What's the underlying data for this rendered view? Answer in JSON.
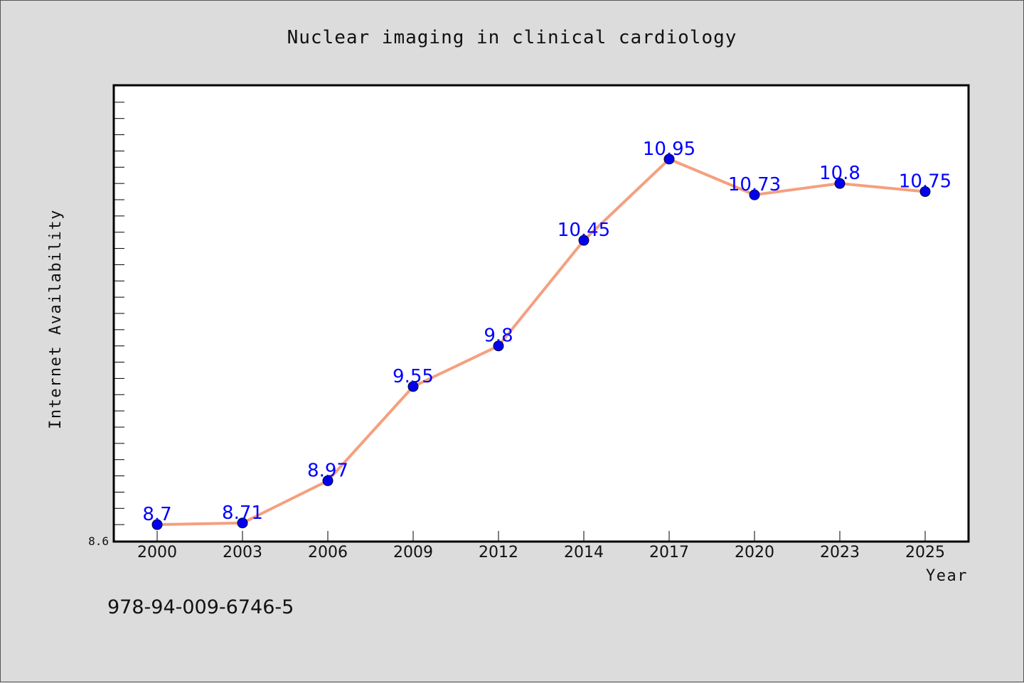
{
  "chart_data": {
    "type": "line",
    "title": "Nuclear imaging in clinical cardiology",
    "xlabel": "Year",
    "ylabel": "Internet Availability",
    "categories": [
      "2000",
      "2003",
      "2006",
      "2009",
      "2012",
      "2014",
      "2017",
      "2020",
      "2023",
      "2025"
    ],
    "series": [
      {
        "values": [
          8.7,
          8.71,
          8.97,
          9.55,
          9.8,
          10.45,
          10.95,
          10.73,
          10.8,
          10.75
        ],
        "labels": [
          "8.7",
          "8.71",
          "8.97",
          "9.55",
          "9.8",
          "10.45",
          "10.95",
          "10.73",
          "10.8",
          "10.75"
        ]
      }
    ],
    "ylim": [
      8.6,
      11.4
    ],
    "y_tick_labels": [
      "8.6"
    ],
    "grid": false,
    "colors": {
      "line": "#f4a07f",
      "marker": "#0000ee",
      "data_label": "#0000ff",
      "background": "#dcdcdc",
      "plot_background": "#ffffff"
    }
  },
  "footer": {
    "isbn": "978-94-009-6746-5"
  }
}
